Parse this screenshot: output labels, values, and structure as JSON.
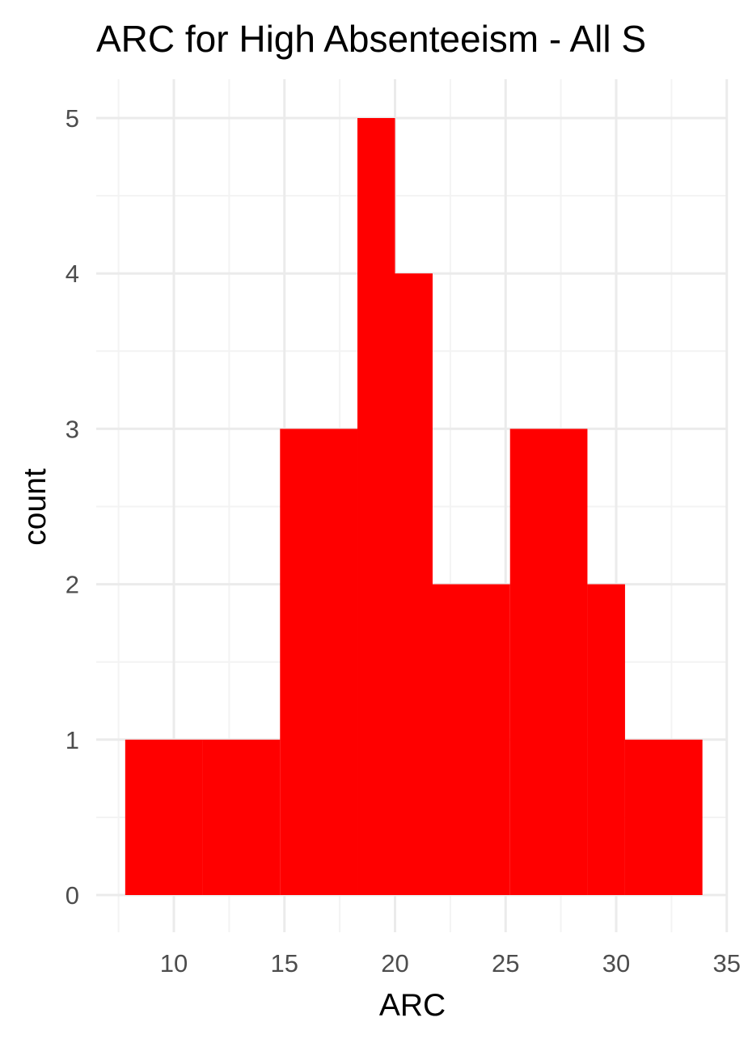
{
  "chart_data": {
    "type": "histogram",
    "title": "ARC for High Absenteeism - All S",
    "xlabel": "ARC",
    "ylabel": "count",
    "bin_width": 3.5,
    "bins": [
      {
        "x_start": 7.8,
        "x_end": 11.3,
        "count": 1
      },
      {
        "x_start": 11.3,
        "x_end": 14.8,
        "count": 1
      },
      {
        "x_start": 14.8,
        "x_end": 18.3,
        "count": 3
      },
      {
        "x_start": 18.3,
        "x_end": 20.0,
        "count": 5
      },
      {
        "x_start": 20.0,
        "x_end": 21.7,
        "count": 4
      },
      {
        "x_start": 21.7,
        "x_end": 25.2,
        "count": 2
      },
      {
        "x_start": 25.2,
        "x_end": 28.7,
        "count": 3
      },
      {
        "x_start": 28.7,
        "x_end": 30.4,
        "count": 2
      },
      {
        "x_start": 30.4,
        "x_end": 33.9,
        "count": 1
      }
    ],
    "xlim": [
      5.8,
      35
    ],
    "ylim": [
      -0.24,
      5.25
    ],
    "x_ticks": [
      "10",
      "15",
      "20",
      "25",
      "30",
      "35"
    ],
    "x_tick_values": [
      10,
      15,
      20,
      25,
      30,
      35
    ],
    "y_ticks": [
      "0",
      "1",
      "2",
      "3",
      "4",
      "5"
    ],
    "y_tick_values": [
      0,
      1,
      2,
      3,
      4,
      5
    ],
    "grid": true,
    "legend": "none",
    "colors": {
      "bar_fill": "#ff0000",
      "grid_major": "#ebebeb",
      "grid_minor": "#f3f3f3",
      "tick_label": "#4d4d4d",
      "title": "#000000"
    }
  }
}
